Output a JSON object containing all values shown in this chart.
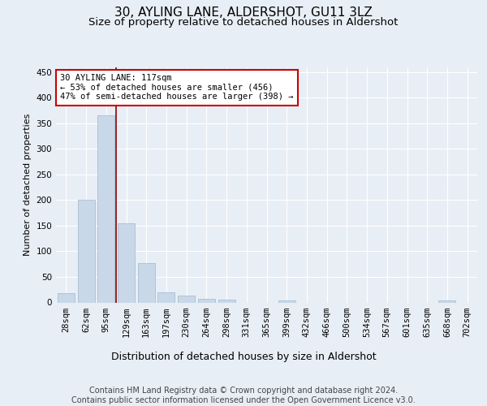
{
  "title": "30, AYLING LANE, ALDERSHOT, GU11 3LZ",
  "subtitle": "Size of property relative to detached houses in Aldershot",
  "xlabel": "Distribution of detached houses by size in Aldershot",
  "ylabel": "Number of detached properties",
  "bar_labels": [
    "28sqm",
    "62sqm",
    "95sqm",
    "129sqm",
    "163sqm",
    "197sqm",
    "230sqm",
    "264sqm",
    "298sqm",
    "331sqm",
    "365sqm",
    "399sqm",
    "432sqm",
    "466sqm",
    "500sqm",
    "534sqm",
    "567sqm",
    "601sqm",
    "635sqm",
    "668sqm",
    "702sqm"
  ],
  "bar_values": [
    18,
    201,
    365,
    155,
    77,
    20,
    14,
    7,
    5,
    0,
    0,
    4,
    0,
    0,
    0,
    0,
    0,
    0,
    0,
    4,
    0
  ],
  "bar_color": "#c8d8e8",
  "bar_edge_color": "#a0b8cc",
  "vline_x_index": 2.5,
  "vline_color": "#8b0000",
  "annotation_text": "30 AYLING LANE: 117sqm\n← 53% of detached houses are smaller (456)\n47% of semi-detached houses are larger (398) →",
  "annotation_box_color": "#ffffff",
  "annotation_box_edge": "#cc0000",
  "ylim": [
    0,
    460
  ],
  "yticks": [
    0,
    50,
    100,
    150,
    200,
    250,
    300,
    350,
    400,
    450
  ],
  "footer_text": "Contains HM Land Registry data © Crown copyright and database right 2024.\nContains public sector information licensed under the Open Government Licence v3.0.",
  "bg_color": "#e8eef5",
  "plot_bg_color": "#e8eef5",
  "title_fontsize": 11,
  "subtitle_fontsize": 9.5,
  "tick_fontsize": 7.5,
  "ylabel_fontsize": 8,
  "xlabel_fontsize": 9,
  "footer_fontsize": 7,
  "annotation_fontsize": 7.5
}
